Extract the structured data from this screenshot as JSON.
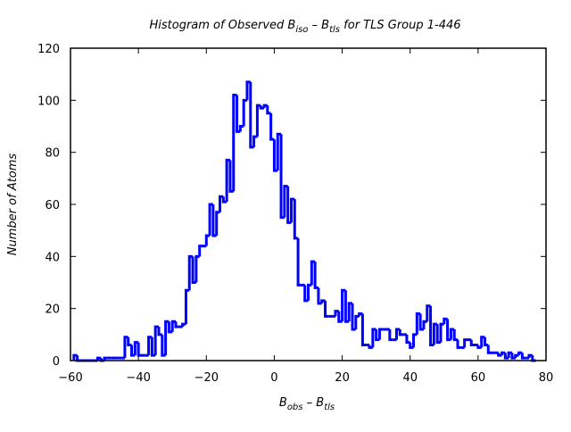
{
  "chart_data": {
    "type": "histogram",
    "title_parts": [
      "Histogram of Observed B",
      "iso",
      " – B",
      "tls",
      "  for TLS Group 1-446"
    ],
    "title": "Histogram of Observed B_iso - B_tls for TLS Group 1-446",
    "xlabel_parts": [
      "B",
      "obs",
      " – B",
      "tls"
    ],
    "ylabel": "Number of Atoms",
    "xlim": [
      -60,
      80
    ],
    "ylim": [
      0,
      120
    ],
    "xticks": [
      -60,
      -40,
      -20,
      0,
      20,
      40,
      60,
      80
    ],
    "yticks": [
      0,
      20,
      40,
      60,
      80,
      100,
      120
    ],
    "bin_width": 1,
    "bin_start": -59,
    "counts": [
      2,
      0,
      0,
      0,
      0,
      0,
      0,
      1,
      0,
      1,
      1,
      1,
      1,
      1,
      1,
      9,
      6,
      2,
      7,
      2,
      2,
      2,
      9,
      2,
      13,
      10,
      2,
      15,
      11,
      15,
      13,
      13,
      14,
      27,
      40,
      30,
      40,
      44,
      44,
      48,
      60,
      48,
      57,
      63,
      61,
      77,
      65,
      102,
      88,
      90,
      100,
      107,
      82,
      86,
      98,
      97,
      98,
      95,
      85,
      73,
      87,
      55,
      67,
      53,
      62,
      47,
      29,
      29,
      23,
      29,
      38,
      28,
      22,
      23,
      17,
      17,
      17,
      19,
      15,
      27,
      15,
      22,
      12,
      17,
      18,
      6,
      6,
      5,
      12,
      8,
      12,
      12,
      12,
      8,
      8,
      12,
      10,
      10,
      7,
      5,
      10,
      18,
      12,
      15,
      21,
      6,
      14,
      7,
      14,
      16,
      8,
      12,
      8,
      5,
      5,
      8,
      8,
      6,
      6,
      5,
      9,
      6,
      3,
      3,
      3,
      2,
      3,
      1,
      3,
      1,
      2,
      3,
      1,
      1,
      2,
      0
    ],
    "color": "#0000ff"
  }
}
